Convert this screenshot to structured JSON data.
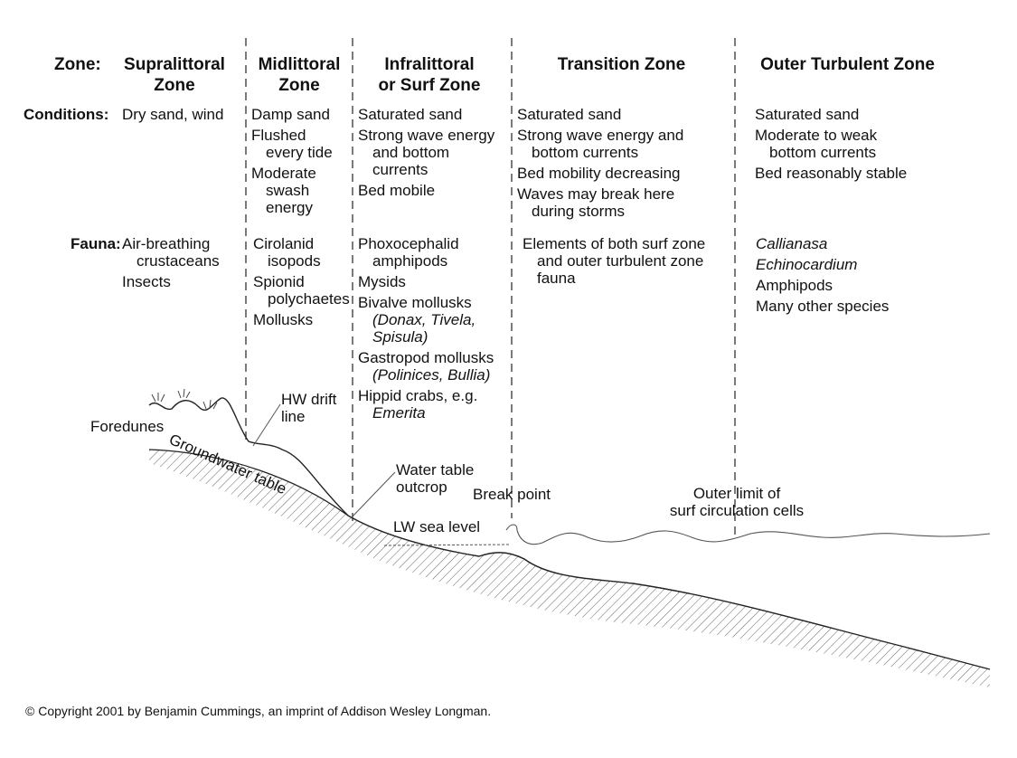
{
  "headers": {
    "zone_label": "Zone:",
    "supralittoral": [
      "Supralittoral",
      "Zone"
    ],
    "midlittoral": [
      "Midlittoral",
      "Zone"
    ],
    "infralittoral": [
      "Infralittoral",
      "or Surf Zone"
    ],
    "transition": [
      "Transition Zone"
    ],
    "outer": [
      "Outer Turbulent Zone"
    ]
  },
  "row_labels": {
    "conditions": "Conditions:",
    "fauna": "Fauna:"
  },
  "conditions": {
    "supralittoral": [
      {
        "text": "Dry sand, wind"
      }
    ],
    "midlittoral": [
      {
        "text": "Damp sand"
      },
      {
        "text": "Flushed"
      },
      {
        "text": "every tide",
        "indent": true
      },
      {
        "text": "Moderate"
      },
      {
        "text": "swash",
        "indent": true
      },
      {
        "text": "energy",
        "indent": true
      }
    ],
    "infralittoral": [
      {
        "text": "Saturated sand"
      },
      {
        "text": "Strong wave energy"
      },
      {
        "text": "and bottom",
        "indent": true
      },
      {
        "text": "currents",
        "indent": true
      },
      {
        "text": "Bed mobile"
      }
    ],
    "transition": [
      {
        "text": "Saturated sand"
      },
      {
        "text": "Strong wave energy and"
      },
      {
        "text": "bottom currents",
        "indent": true
      },
      {
        "text": "Bed mobility decreasing"
      },
      {
        "text": "Waves may break here"
      },
      {
        "text": "during storms",
        "indent": true
      }
    ],
    "outer": [
      {
        "text": "Saturated sand"
      },
      {
        "text": "Moderate to weak"
      },
      {
        "text": "bottom currents",
        "indent": true
      },
      {
        "text": "Bed reasonably stable"
      }
    ]
  },
  "fauna": {
    "supralittoral": [
      {
        "text": "Air-breathing"
      },
      {
        "text": "crustaceans",
        "indent": true
      },
      {
        "text": "Insects"
      }
    ],
    "midlittoral": [
      {
        "text": "Cirolanid"
      },
      {
        "text": "isopods",
        "indent": true
      },
      {
        "text": "Spionid"
      },
      {
        "text": "polychaetes",
        "indent": true
      },
      {
        "text": "Mollusks"
      }
    ],
    "infralittoral": [
      {
        "text": "Phoxocephalid"
      },
      {
        "text": "amphipods",
        "indent": true
      },
      {
        "text": "Mysids"
      },
      {
        "text": "Bivalve mollusks"
      },
      {
        "text": "(Donax, Tivela,",
        "indent": true,
        "italic": true
      },
      {
        "text": "Spisula)",
        "indent": true,
        "italic": true,
        "cont": true
      },
      {
        "text": "Gastropod mollusks"
      },
      {
        "text": "(Polinices, Bullia)",
        "indent": true,
        "italic": true
      },
      {
        "text": "Hippid crabs, e.g."
      },
      {
        "text": "Emerita",
        "indent": true,
        "italic": true
      }
    ],
    "transition": [
      {
        "text": "Elements of both surf zone"
      },
      {
        "text": "and outer turbulent zone",
        "indent": true
      },
      {
        "text": "fauna",
        "indent": true
      }
    ],
    "outer": [
      {
        "text": "Callianasa",
        "italic": true
      },
      {
        "text": "Echinocardium",
        "italic": true
      },
      {
        "text": "Amphipods"
      },
      {
        "text": "Many other species"
      }
    ]
  },
  "profile_labels": {
    "foredunes": "Foredunes",
    "groundwater_table": "Groundwater table",
    "hw_drift_line": [
      "HW drift",
      "line"
    ],
    "water_table_outcrop": [
      "Water table",
      "outcrop"
    ],
    "break_point": "Break point",
    "lw_sea_level": "LW sea level",
    "outer_limit": [
      "Outer limit of",
      "surf circulation cells"
    ]
  },
  "copyright": "© Copyright 2001 by Benjamin Cummings, an imprint of Addison Wesley Longman."
}
